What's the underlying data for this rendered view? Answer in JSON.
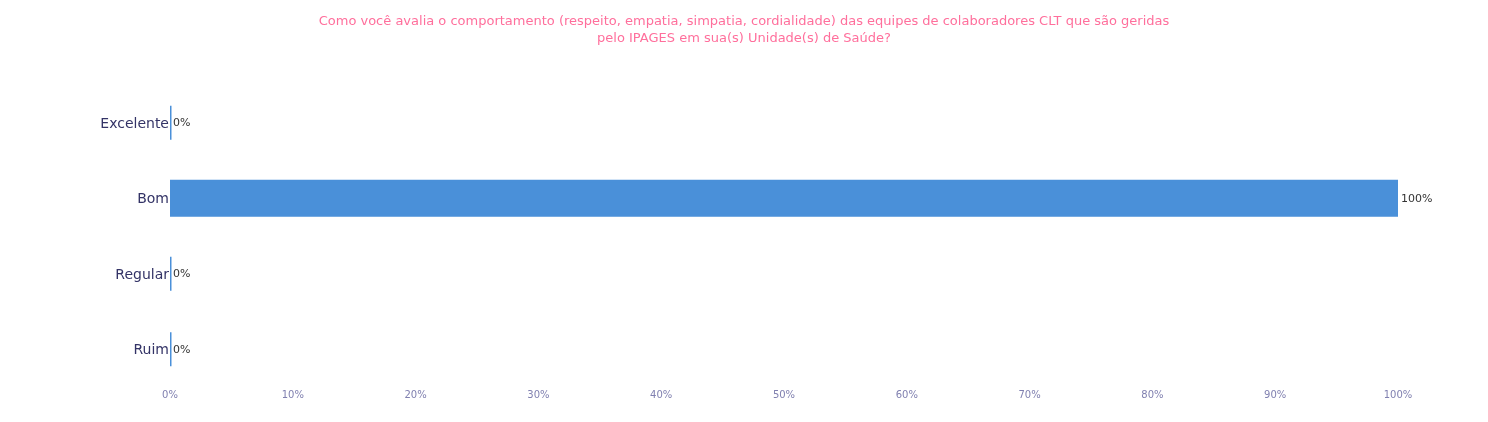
{
  "chart_data": {
    "type": "bar",
    "orientation": "horizontal",
    "title": "Como você avalia o comportamento (respeito, empatia, simpatia, cordialidade) das equipes de colaboradores CLT que são geridas pelo IPAGES em sua(s) Unidade(s) de Saúde?",
    "categories": [
      "Excelente",
      "Bom",
      "Regular",
      "Ruim"
    ],
    "values": [
      0,
      100,
      0,
      0
    ],
    "value_labels": [
      "0%",
      "100%",
      "0%",
      "0%"
    ],
    "color": "#4a90d9",
    "xlim": [
      0,
      100
    ],
    "xticks": [
      {
        "value": 0,
        "label": "0%"
      },
      {
        "value": 10,
        "label": "10%"
      },
      {
        "value": 20,
        "label": "20%"
      },
      {
        "value": 30,
        "label": "30%"
      },
      {
        "value": 40,
        "label": "40%"
      },
      {
        "value": 50,
        "label": "50%"
      },
      {
        "value": 60,
        "label": "60%"
      },
      {
        "value": 70,
        "label": "70%"
      },
      {
        "value": 80,
        "label": "80%"
      },
      {
        "value": 90,
        "label": "90%"
      },
      {
        "value": 100,
        "label": "100%"
      }
    ],
    "grid": false
  }
}
